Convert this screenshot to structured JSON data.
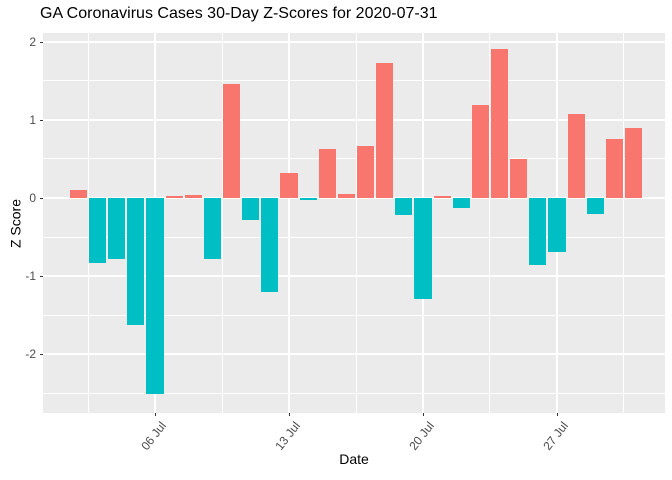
{
  "title": "GA Coronavirus Cases 30-Day Z-Scores for 2020-07-31",
  "chart_data": {
    "type": "bar",
    "title": "GA Coronavirus Cases 30-Day Z-Scores for 2020-07-31",
    "xlabel": "Date",
    "ylabel": "Z Score",
    "x": [
      "2020-07-01",
      "2020-07-02",
      "2020-07-03",
      "2020-07-04",
      "2020-07-05",
      "2020-07-06",
      "2020-07-07",
      "2020-07-08",
      "2020-07-09",
      "2020-07-10",
      "2020-07-11",
      "2020-07-12",
      "2020-07-13",
      "2020-07-14",
      "2020-07-15",
      "2020-07-16",
      "2020-07-17",
      "2020-07-18",
      "2020-07-19",
      "2020-07-20",
      "2020-07-21",
      "2020-07-22",
      "2020-07-23",
      "2020-07-24",
      "2020-07-25",
      "2020-07-26",
      "2020-07-27",
      "2020-07-28",
      "2020-07-29",
      "2020-07-30",
      "2020-07-31"
    ],
    "values": [
      0.0,
      0.1,
      -0.83,
      -0.78,
      -1.63,
      -2.51,
      0.02,
      0.04,
      -0.78,
      1.46,
      -0.28,
      -1.2,
      0.32,
      -0.03,
      0.63,
      0.05,
      0.67,
      1.73,
      -0.22,
      -1.29,
      0.02,
      -0.13,
      1.19,
      1.9,
      0.5,
      -0.86,
      -0.69,
      1.08,
      -0.2,
      0.76,
      0.89
    ],
    "x_ticks": [
      {
        "label": "06 Jul",
        "index": 5
      },
      {
        "label": "13 Jul",
        "index": 12
      },
      {
        "label": "20 Jul",
        "index": 19
      },
      {
        "label": "27 Jul",
        "index": 26
      }
    ],
    "x_minor_indices": [
      1.5,
      8.5,
      15.5,
      22.5,
      29.5
    ],
    "y_ticks": [
      2,
      1,
      0,
      -1,
      -2
    ],
    "y_minor_ticks": [
      1.5,
      0.5,
      -0.5,
      -1.5,
      -2.5
    ],
    "ylim": [
      -2.75,
      2.11
    ],
    "grid": "on",
    "legend": "none",
    "colors": {
      "bar_positive": "#F8766D",
      "bar_negative": "#00BFC4",
      "panel_background": "#EBEBEB",
      "gridline": "#FFFFFF",
      "axis_text": "#4D4D4D",
      "title_text": "#000000"
    }
  }
}
